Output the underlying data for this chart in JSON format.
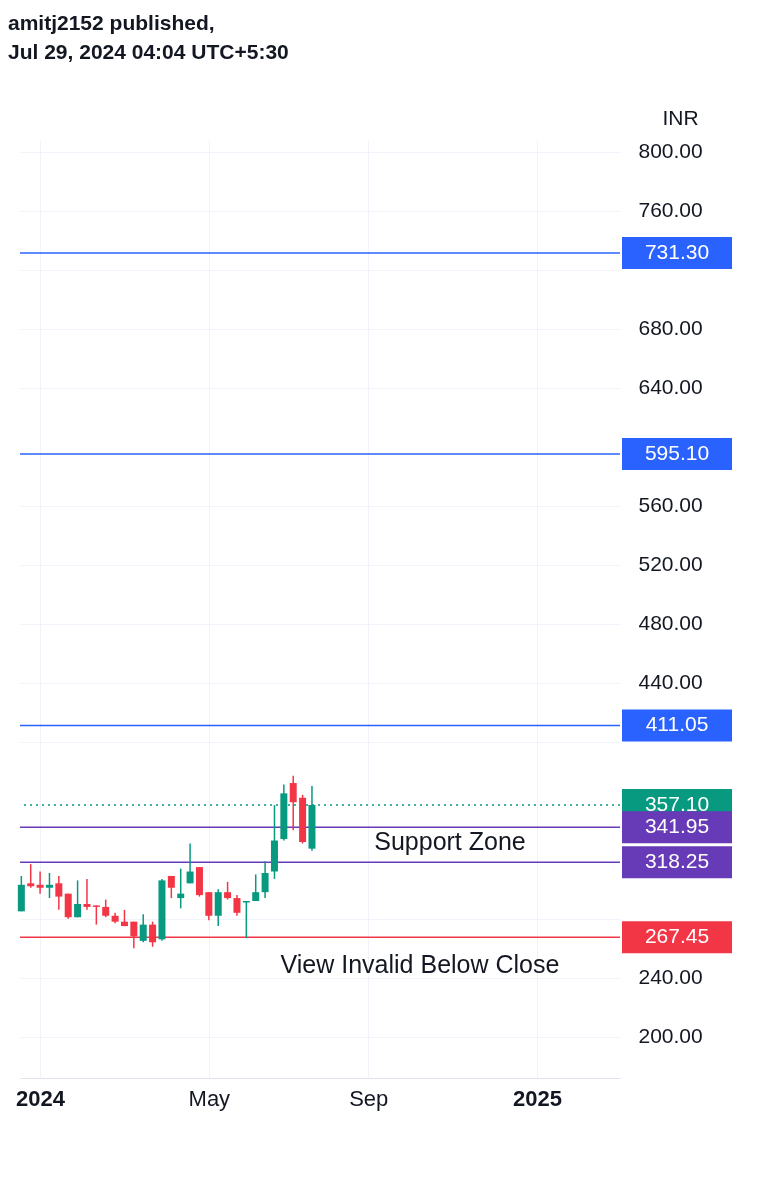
{
  "chart_data": {
    "type": "candlestick",
    "title": "amitj2152 published,",
    "subtitle": "Jul 29, 2024 04:04 UTC+5:30",
    "ylabel": "INR",
    "x": [
      "2023-12-18",
      "2023-12-25",
      "2024-01-01",
      "2024-01-08",
      "2024-01-15",
      "2024-01-22",
      "2024-01-29",
      "2024-02-05",
      "2024-02-12",
      "2024-02-19",
      "2024-02-26",
      "2024-03-04",
      "2024-03-11",
      "2024-03-18",
      "2024-03-25",
      "2024-04-01",
      "2024-04-08",
      "2024-04-15",
      "2024-04-22",
      "2024-04-29",
      "2024-05-06",
      "2024-05-13",
      "2024-05-20",
      "2024-05-27",
      "2024-06-03",
      "2024-06-10",
      "2024-06-17",
      "2024-06-24",
      "2024-07-01",
      "2024-07-08",
      "2024-07-15",
      "2024-07-22"
    ],
    "ohlc": [
      [
        285,
        309,
        285,
        303
      ],
      [
        304,
        317,
        301,
        302
      ],
      [
        303,
        312,
        297,
        301
      ],
      [
        301,
        311,
        294,
        303
      ],
      [
        304,
        309,
        286,
        295
      ],
      [
        297,
        297,
        280,
        281
      ],
      [
        281,
        306,
        281,
        290
      ],
      [
        290,
        307,
        286,
        288
      ],
      [
        289,
        289,
        276,
        288
      ],
      [
        288,
        293,
        281,
        282
      ],
      [
        282,
        284,
        277,
        278
      ],
      [
        278,
        286,
        275,
        275
      ],
      [
        278,
        278,
        260,
        268
      ],
      [
        265,
        283,
        264,
        276
      ],
      [
        276,
        278,
        261,
        264
      ],
      [
        266,
        307,
        265,
        306
      ],
      [
        309,
        309,
        294,
        301
      ],
      [
        294,
        314,
        287,
        297
      ],
      [
        304,
        331,
        304,
        312
      ],
      [
        315,
        315,
        295,
        296
      ],
      [
        298,
        298,
        279,
        282
      ],
      [
        282,
        300,
        275,
        298
      ],
      [
        298,
        305,
        293,
        294
      ],
      [
        294,
        296,
        282,
        284
      ],
      [
        291,
        292,
        267,
        292
      ],
      [
        292,
        310,
        292,
        298
      ],
      [
        298,
        319,
        294,
        311
      ],
      [
        312,
        357,
        307,
        333
      ],
      [
        334,
        371,
        333,
        365
      ],
      [
        372,
        377,
        340,
        359
      ],
      [
        362,
        364,
        331,
        332
      ],
      [
        327.5,
        370,
        326,
        357.1
      ]
    ],
    "xlim": [
      "2023-12-17",
      "2025-03-09"
    ],
    "xticks": [
      {
        "value": "2024-01-01",
        "label": "2024"
      },
      {
        "value": "2024-05-06",
        "label": "May"
      },
      {
        "value": "2024-09-02",
        "label": "Sep"
      },
      {
        "value": "2025-01-06",
        "label": "2025"
      }
    ],
    "ylim": [
      172,
      808
    ],
    "yticks": [
      {
        "value": 200,
        "label": "200.00"
      },
      {
        "value": 240,
        "label": "240.00"
      },
      {
        "value": 280,
        "label": null
      },
      {
        "value": 400,
        "label": null
      },
      {
        "value": 440,
        "label": "440.00"
      },
      {
        "value": 480,
        "label": "480.00"
      },
      {
        "value": 520,
        "label": "520.00"
      },
      {
        "value": 560,
        "label": "560.00"
      },
      {
        "value": 640,
        "label": "640.00"
      },
      {
        "value": 680,
        "label": "680.00"
      },
      {
        "value": 720,
        "label": null
      },
      {
        "value": 760,
        "label": "760.00"
      },
      {
        "value": 800,
        "label": "800.00"
      }
    ],
    "grid": true,
    "ref_lines": [
      {
        "axis": "y",
        "value": 731.3,
        "label": "731.30",
        "color": "#2962ff"
      },
      {
        "axis": "y",
        "value": 595.1,
        "label": "595.10",
        "color": "#2962ff"
      },
      {
        "axis": "y",
        "value": 411.05,
        "label": "411.05",
        "color": "#2962ff"
      },
      {
        "axis": "y",
        "value": 357.1,
        "label": "357.10",
        "color": "#089981",
        "line_style": "dotted"
      },
      {
        "axis": "y",
        "value": 341.95,
        "label": "341.95",
        "color": "#673ab7"
      },
      {
        "axis": "y",
        "value": 318.25,
        "label": "318.25",
        "color": "#673ab7"
      },
      {
        "axis": "y",
        "value": 267.45,
        "label": "267.45",
        "color": "#f23645"
      }
    ],
    "annotations": [
      "Support Zone",
      "View Invalid Below Close"
    ]
  }
}
